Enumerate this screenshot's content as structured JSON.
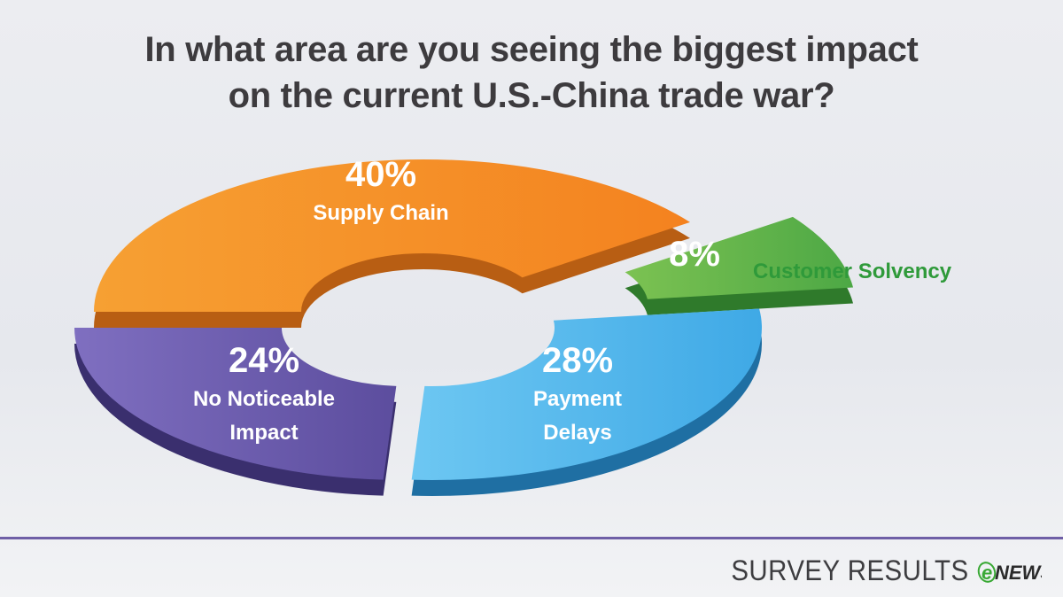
{
  "chart_data": {
    "type": "pie",
    "title": "In what area are you seeing the biggest impact on the current U.S.-China trade war?",
    "title_lines": [
      "In what area are you seeing the biggest impact",
      "on the current U.S.-China trade war?"
    ],
    "slices": [
      {
        "label": "Supply Chain",
        "label_lines": [
          "Supply Chain"
        ],
        "value": 40,
        "value_label": "40%",
        "color": "#f4821f",
        "color_dark": "#b85e13",
        "color_light": "#f6a033"
      },
      {
        "label": "Customer Solvency",
        "label_lines": [],
        "outside_label": "Customer Solvency",
        "value": 8,
        "value_label": "8%",
        "color": "#4da845",
        "color_dark": "#2f7a2b",
        "color_light": "#7cc252"
      },
      {
        "label": "Payment Delays",
        "label_lines": [
          "Payment",
          "Delays"
        ],
        "value": 28,
        "value_label": "28%",
        "color": "#3fa9e6",
        "color_dark": "#1f6fa3",
        "color_light": "#6dc7f2"
      },
      {
        "label": "No Noticeable Impact",
        "label_lines": [
          "No Noticeable",
          "Impact"
        ],
        "value": 24,
        "value_label": "24%",
        "color": "#5c4d9e",
        "color_dark": "#3a2f6e",
        "color_light": "#7f6fc0"
      }
    ],
    "donut": true,
    "exploded": true,
    "legend": "none"
  },
  "footer": {
    "text": "SURVEY RESULTS",
    "brand_e": "e",
    "brand_news": "NEWS",
    "brand_color": "#3aa935",
    "rule_color": "#6f5fa6"
  }
}
